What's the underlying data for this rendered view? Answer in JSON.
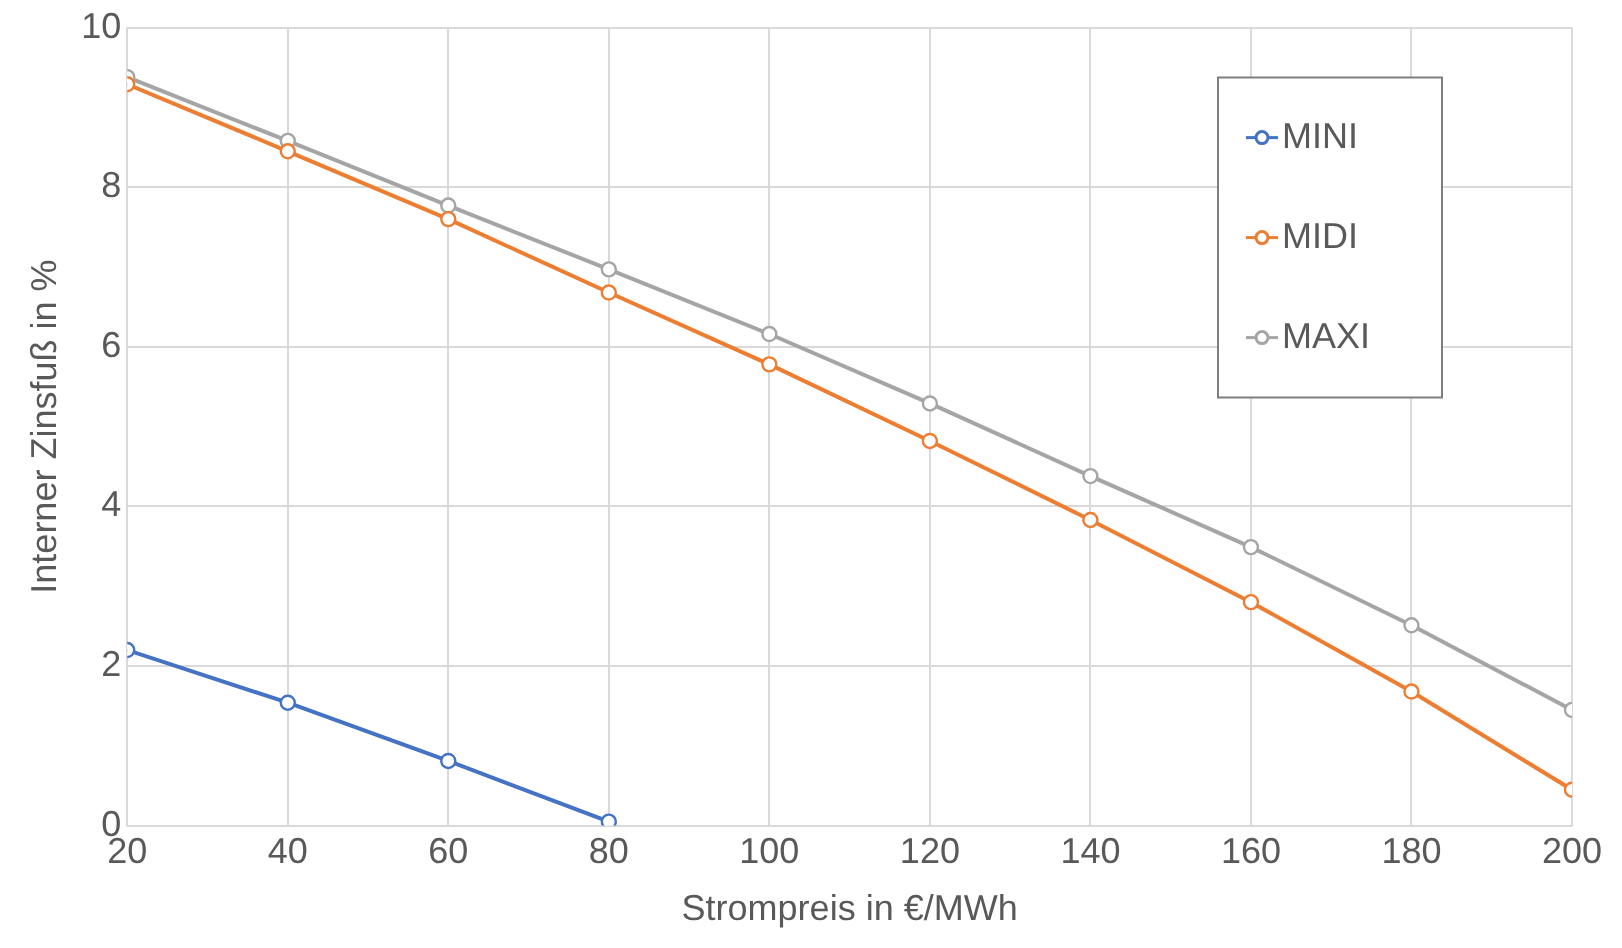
{
  "chart_data": {
    "type": "line",
    "xlabel": "Strompreis in €/MWh",
    "ylabel": "Interner Zinsfuß in %",
    "x": [
      20,
      40,
      60,
      80,
      100,
      120,
      140,
      160,
      180,
      200
    ],
    "series": [
      {
        "name": "MINI",
        "color": "#4472c4",
        "x": [
          20,
          40,
          60,
          80
        ],
        "values": [
          2.2,
          1.54,
          0.81,
          0.05
        ]
      },
      {
        "name": "MIDI",
        "color": "#ed7d31",
        "values": [
          9.29,
          8.45,
          7.6,
          6.68,
          5.78,
          4.82,
          3.83,
          2.8,
          1.68,
          0.45
        ]
      },
      {
        "name": "MAXI",
        "color": "#a5a5a5",
        "values": [
          9.38,
          8.58,
          7.77,
          6.97,
          6.16,
          5.29,
          4.38,
          3.49,
          2.51,
          1.45
        ]
      }
    ],
    "xlim": [
      20,
      200
    ],
    "xticks": [
      20,
      40,
      60,
      80,
      100,
      120,
      140,
      160,
      180,
      200
    ],
    "ylim": [
      0,
      10
    ],
    "yticks": [
      0,
      2,
      4,
      6,
      8,
      10
    ],
    "grid": true,
    "legend": "top right",
    "marker": "circle",
    "line_style": "solid"
  }
}
